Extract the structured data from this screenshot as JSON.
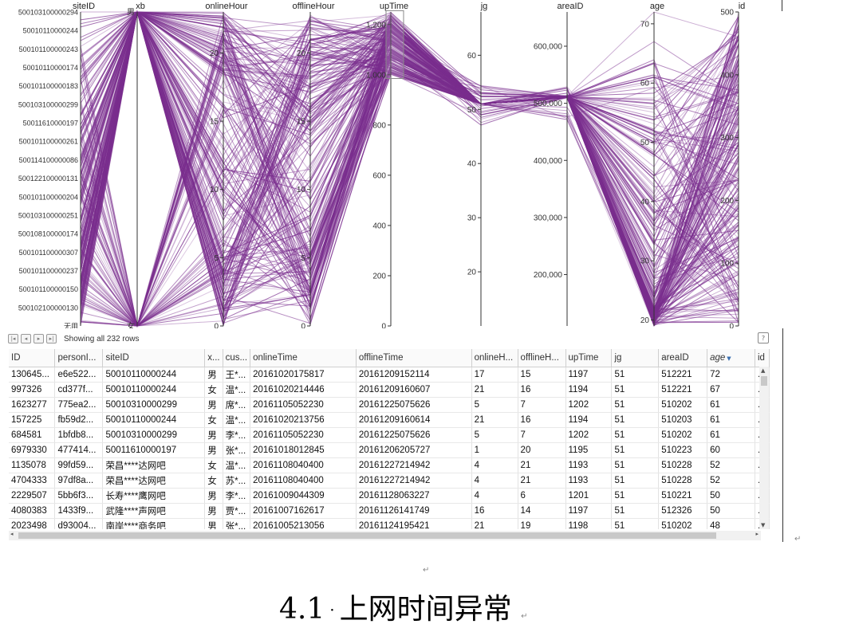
{
  "chart_data": {
    "type": "parallel-coordinates",
    "axes": [
      {
        "name": "siteID",
        "kind": "categorical",
        "labels": [
          "500103100000294",
          "50010110000244",
          "500101100000243",
          "50010110000174",
          "500101100000183",
          "500103100000299",
          "50011610000197",
          "500101100000261",
          "500114100000086",
          "500122100000131",
          "500101100000204",
          "500103100000251",
          "500108100000174",
          "500101100000307",
          "500101100000237",
          "500101100000150",
          "500102100000130",
          "无用"
        ]
      },
      {
        "name": "xb",
        "kind": "categorical",
        "labels": [
          "男",
          "女"
        ]
      },
      {
        "name": "onlineHour",
        "kind": "numeric",
        "min": 0,
        "max": 23,
        "ticks": [
          0,
          5,
          10,
          15,
          20
        ]
      },
      {
        "name": "offlineHour",
        "kind": "numeric",
        "min": 0,
        "max": 23,
        "ticks": [
          0,
          5,
          10,
          15,
          20
        ]
      },
      {
        "name": "upTime",
        "kind": "numeric",
        "min": 0,
        "max": 1250,
        "ticks": [
          0,
          200,
          400,
          600,
          800,
          1000,
          1200
        ],
        "tick_labels": [
          "0",
          "200",
          "400",
          "600",
          "800",
          "1,000",
          "1,200"
        ],
        "brush": [
          985,
          1255
        ]
      },
      {
        "name": "jg",
        "kind": "numeric",
        "min": 10,
        "max": 68,
        "ticks": [
          20,
          30,
          40,
          50,
          60
        ]
      },
      {
        "name": "areaID",
        "kind": "numeric",
        "min": 110000,
        "max": 660000,
        "ticks": [
          200000,
          300000,
          400000,
          500000,
          600000
        ],
        "tick_labels": [
          "200,000",
          "300,000",
          "400,000",
          "500,000",
          "600,000"
        ]
      },
      {
        "name": "age",
        "kind": "numeric",
        "min": 19,
        "max": 72,
        "ticks": [
          20,
          30,
          40,
          50,
          60,
          70
        ]
      },
      {
        "name": "id",
        "kind": "numeric",
        "min": 0,
        "max": 500,
        "ticks": [
          0,
          100,
          200,
          300,
          400,
          500
        ]
      }
    ],
    "line_color": "#7a2e8e"
  },
  "pager": {
    "buttons": [
      "first",
      "prev",
      "next",
      "last"
    ],
    "rows_text": "Showing all 232 rows"
  },
  "table": {
    "columns": [
      "ID",
      "personI...",
      "siteID",
      "x...",
      "cus...",
      "onlineTime",
      "offlineTime",
      "onlineH...",
      "offlineH...",
      "upTime",
      "jg",
      "areaID",
      "age",
      "id"
    ],
    "sorted_column": "age",
    "rows": [
      [
        "130645...",
        "e6e522...",
        "50010110000244",
        "男",
        "王*...",
        "20161020175817",
        "20161209152114",
        "17",
        "15",
        "1197",
        "51",
        "512221",
        "72",
        "..."
      ],
      [
        "997326",
        "cd377f...",
        "50010110000244",
        "女",
        "温*...",
        "20161020214446",
        "20161209160607",
        "21",
        "16",
        "1194",
        "51",
        "512221",
        "67",
        "..."
      ],
      [
        "1623277",
        "775ea2...",
        "50010310000299",
        "男",
        "席*...",
        "20161105052230",
        "20161225075626",
        "5",
        "7",
        "1202",
        "51",
        "510202",
        "61",
        "..."
      ],
      [
        "157225",
        "fb59d2...",
        "50010110000244",
        "女",
        "温*...",
        "20161020213756",
        "20161209160614",
        "21",
        "16",
        "1194",
        "51",
        "510203",
        "61",
        "..."
      ],
      [
        "684581",
        "1bfdb8...",
        "50010310000299",
        "男",
        "李*...",
        "20161105052230",
        "20161225075626",
        "5",
        "7",
        "1202",
        "51",
        "510202",
        "61",
        "..."
      ],
      [
        "6979330",
        "477414...",
        "50011610000197",
        "男",
        "张*...",
        "20161018012845",
        "20161206205727",
        "1",
        "20",
        "1195",
        "51",
        "510223",
        "60",
        "..."
      ],
      [
        "1135078",
        "99fd59...",
        "荣昌****达网吧",
        "女",
        "温*...",
        "20161108040400",
        "20161227214942",
        "4",
        "21",
        "1193",
        "51",
        "510228",
        "52",
        "..."
      ],
      [
        "4704333",
        "97df8a...",
        "荣昌****达网吧",
        "女",
        "苏*...",
        "20161108040400",
        "20161227214942",
        "4",
        "21",
        "1193",
        "51",
        "510228",
        "52",
        "..."
      ],
      [
        "2229507",
        "5bb6f3...",
        "长寿****鹰网吧",
        "男",
        "李*...",
        "20161009044309",
        "20161128063227",
        "4",
        "6",
        "1201",
        "51",
        "510221",
        "50",
        "..."
      ],
      [
        "4080383",
        "1433f9...",
        "武隆****声网吧",
        "男",
        "贾*...",
        "20161007162617",
        "20161126141749",
        "16",
        "14",
        "1197",
        "51",
        "512326",
        "50",
        "..."
      ],
      [
        "2023498",
        "d93004...",
        "南岸****商务吧",
        "男",
        "张*...",
        "20161005213056",
        "20161124195421",
        "21",
        "19",
        "1198",
        "51",
        "510202",
        "48",
        "..."
      ]
    ]
  },
  "caption": {
    "number": "4.1",
    "title": "上网时间异常"
  }
}
